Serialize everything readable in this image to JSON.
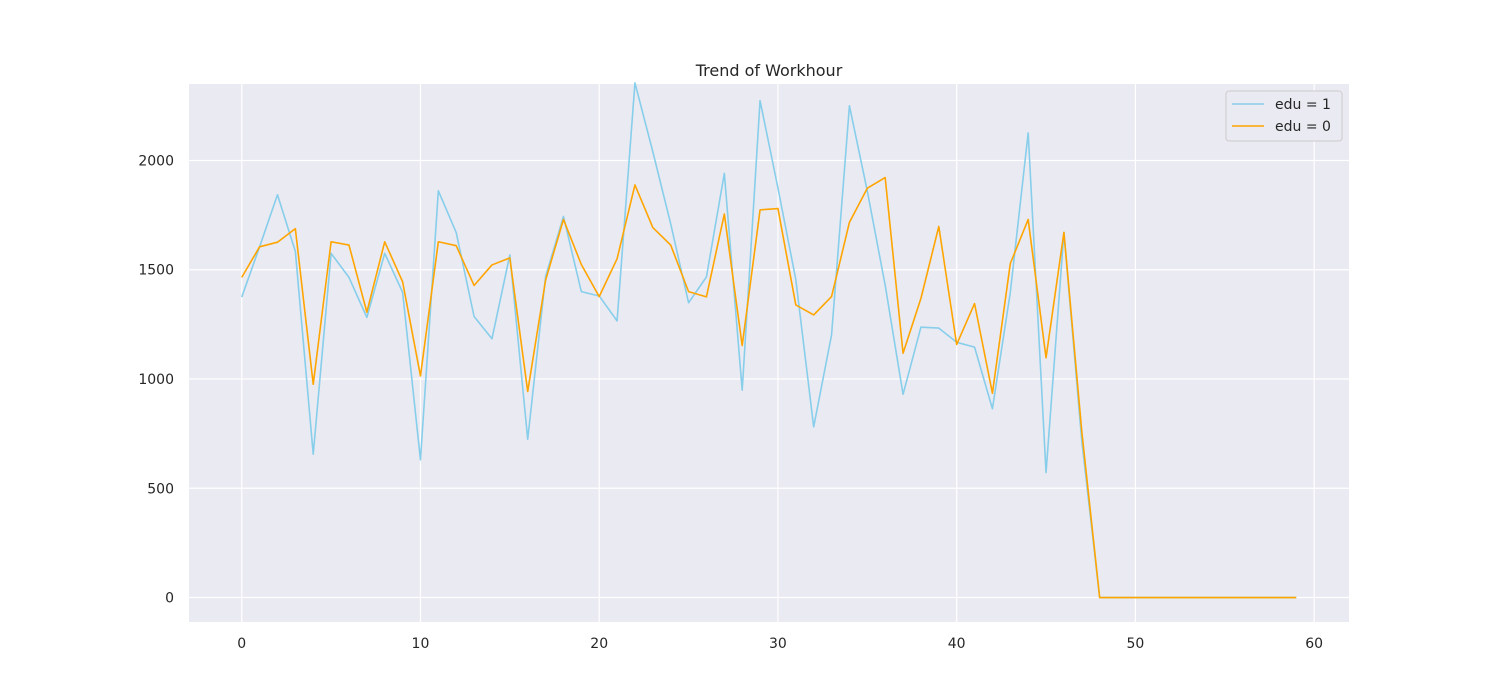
{
  "chart_data": {
    "type": "line",
    "title": "Trend of Workhour",
    "xlabel": "",
    "ylabel": "",
    "xlim": [
      -2.95,
      61.95
    ],
    "ylim": [
      -112,
      2350
    ],
    "xticks": [
      0,
      10,
      20,
      30,
      40,
      50,
      60
    ],
    "yticks": [
      0,
      500,
      1000,
      1500,
      2000
    ],
    "grid": true,
    "legend_position": "top-right",
    "x": [
      0,
      1,
      2,
      3,
      4,
      5,
      6,
      7,
      8,
      9,
      10,
      11,
      12,
      13,
      14,
      15,
      16,
      17,
      18,
      19,
      20,
      21,
      22,
      23,
      24,
      25,
      26,
      27,
      28,
      29,
      30,
      31,
      32,
      33,
      34,
      35,
      36,
      37,
      38,
      39,
      40,
      41,
      42,
      43,
      44,
      45,
      46,
      47,
      48,
      49,
      50,
      51,
      52,
      53,
      54,
      55,
      56,
      57,
      58,
      59
    ],
    "series": [
      {
        "name": "edu = 1",
        "color": "#87ceeb",
        "values": [
          1375,
          1605,
          1843,
          1584,
          656,
          1575,
          1465,
          1282,
          1575,
          1397,
          630,
          1861,
          1670,
          1286,
          1184,
          1568,
          724,
          1469,
          1744,
          1400,
          1380,
          1266,
          2355,
          2040,
          1710,
          1349,
          1467,
          1941,
          949,
          2274,
          1874,
          1455,
          781,
          1202,
          2250,
          1860,
          1429,
          930,
          1237,
          1233,
          1168,
          1146,
          864,
          1396,
          2126,
          572,
          1670,
          716,
          0,
          0,
          0,
          0,
          0,
          0,
          0,
          0,
          0,
          0,
          0,
          0
        ]
      },
      {
        "name": "edu = 0",
        "color": "#ffa500",
        "values": [
          1465,
          1605,
          1626,
          1688,
          976,
          1628,
          1613,
          1306,
          1628,
          1445,
          1014,
          1628,
          1610,
          1428,
          1522,
          1554,
          943,
          1452,
          1730,
          1524,
          1377,
          1550,
          1888,
          1693,
          1613,
          1400,
          1376,
          1755,
          1153,
          1774,
          1780,
          1339,
          1293,
          1377,
          1717,
          1873,
          1922,
          1118,
          1369,
          1698,
          1158,
          1345,
          935,
          1528,
          1730,
          1097,
          1671,
          760,
          0,
          0,
          0,
          0,
          0,
          0,
          0,
          0,
          0,
          0,
          0,
          0
        ]
      }
    ]
  }
}
